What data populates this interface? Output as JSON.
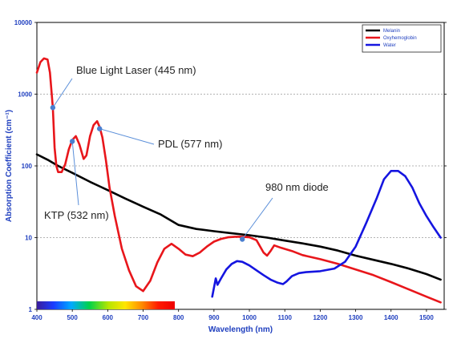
{
  "chart_data": {
    "type": "line",
    "xlabel": "Wavelength (nm)",
    "ylabel": "Absorption Coefficient (cm⁻¹)",
    "xlim": [
      400,
      1550
    ],
    "ylim": [
      1,
      10000
    ],
    "yscale": "log",
    "x_ticks": [
      "400",
      "500",
      "600",
      "700",
      "800",
      "900",
      "1000",
      "1100",
      "1200",
      "1300",
      "1400",
      "1500"
    ],
    "y_ticks": [
      "1",
      "10",
      "100",
      "1000",
      "10000"
    ],
    "grid": "horizontal dashed",
    "legend_position": "top-right",
    "series": [
      {
        "name": "Melanin",
        "color": "#000000",
        "points": [
          [
            400,
            145
          ],
          [
            430,
            122
          ],
          [
            460,
            100
          ],
          [
            500,
            80
          ],
          [
            550,
            60
          ],
          [
            600,
            46
          ],
          [
            650,
            35
          ],
          [
            700,
            27
          ],
          [
            750,
            21
          ],
          [
            800,
            15
          ],
          [
            850,
            13.2
          ],
          [
            900,
            12.3
          ],
          [
            950,
            11.5
          ],
          [
            1000,
            10.8
          ],
          [
            1050,
            10
          ],
          [
            1100,
            9.1
          ],
          [
            1150,
            8.3
          ],
          [
            1200,
            7.5
          ],
          [
            1250,
            6.6
          ],
          [
            1300,
            5.6
          ],
          [
            1350,
            4.9
          ],
          [
            1400,
            4.3
          ],
          [
            1450,
            3.7
          ],
          [
            1500,
            3.1
          ],
          [
            1540,
            2.6
          ]
        ]
      },
      {
        "name": "Oxyhemoglobin",
        "color": "#e8161b",
        "points": [
          [
            400,
            2000
          ],
          [
            410,
            2800
          ],
          [
            420,
            3150
          ],
          [
            430,
            3050
          ],
          [
            437,
            2000
          ],
          [
            445,
            650
          ],
          [
            450,
            180
          ],
          [
            455,
            100
          ],
          [
            460,
            82
          ],
          [
            470,
            82
          ],
          [
            480,
            105
          ],
          [
            490,
            170
          ],
          [
            500,
            230
          ],
          [
            510,
            260
          ],
          [
            520,
            200
          ],
          [
            532,
            125
          ],
          [
            540,
            140
          ],
          [
            550,
            260
          ],
          [
            560,
            370
          ],
          [
            570,
            420
          ],
          [
            577,
            350
          ],
          [
            585,
            250
          ],
          [
            595,
            120
          ],
          [
            605,
            50
          ],
          [
            620,
            20
          ],
          [
            640,
            7
          ],
          [
            660,
            3.5
          ],
          [
            680,
            2.1
          ],
          [
            700,
            1.8
          ],
          [
            720,
            2.5
          ],
          [
            740,
            4.5
          ],
          [
            760,
            7
          ],
          [
            780,
            8.2
          ],
          [
            800,
            7
          ],
          [
            820,
            5.8
          ],
          [
            840,
            5.5
          ],
          [
            860,
            6.2
          ],
          [
            880,
            7.5
          ],
          [
            900,
            8.8
          ],
          [
            920,
            9.6
          ],
          [
            940,
            10.1
          ],
          [
            960,
            10.3
          ],
          [
            980,
            10.3
          ],
          [
            1000,
            10.1
          ],
          [
            1020,
            9.2
          ],
          [
            1040,
            6.2
          ],
          [
            1050,
            5.6
          ],
          [
            1060,
            6.5
          ],
          [
            1070,
            7.8
          ],
          [
            1090,
            7.2
          ],
          [
            1120,
            6.5
          ],
          [
            1150,
            5.7
          ],
          [
            1200,
            5
          ],
          [
            1250,
            4.3
          ],
          [
            1300,
            3.6
          ],
          [
            1350,
            3
          ],
          [
            1400,
            2.4
          ],
          [
            1450,
            1.9
          ],
          [
            1500,
            1.5
          ],
          [
            1540,
            1.25
          ]
        ]
      },
      {
        "name": "Water",
        "color": "#1515e0",
        "points": [
          [
            895,
            1.5
          ],
          [
            905,
            2.7
          ],
          [
            910,
            2.2
          ],
          [
            920,
            2.7
          ],
          [
            935,
            3.6
          ],
          [
            950,
            4.3
          ],
          [
            965,
            4.7
          ],
          [
            980,
            4.6
          ],
          [
            1000,
            4.1
          ],
          [
            1020,
            3.5
          ],
          [
            1040,
            3
          ],
          [
            1060,
            2.6
          ],
          [
            1080,
            2.35
          ],
          [
            1095,
            2.25
          ],
          [
            1105,
            2.45
          ],
          [
            1120,
            2.9
          ],
          [
            1140,
            3.2
          ],
          [
            1160,
            3.3
          ],
          [
            1200,
            3.4
          ],
          [
            1240,
            3.7
          ],
          [
            1270,
            4.6
          ],
          [
            1300,
            7.5
          ],
          [
            1330,
            16
          ],
          [
            1360,
            36
          ],
          [
            1380,
            65
          ],
          [
            1400,
            85
          ],
          [
            1420,
            85
          ],
          [
            1440,
            72
          ],
          [
            1460,
            50
          ],
          [
            1480,
            30
          ],
          [
            1500,
            20
          ],
          [
            1520,
            14
          ],
          [
            1540,
            10
          ]
        ]
      }
    ],
    "annotations": [
      {
        "text": "Blue Light Laser (445 nm)",
        "point": [
          445,
          650
        ]
      },
      {
        "text": "KTP (532 nm)",
        "point": [
          500,
          220
        ]
      },
      {
        "text": "PDL (577 nm)",
        "point": [
          577,
          330
        ]
      },
      {
        "text": "980 nm diode",
        "point": [
          980,
          9.5
        ]
      }
    ],
    "colors": {
      "axis_text": "#1f3fbf",
      "marker": "#4a7fd0",
      "annotation_arrow": "#5b8fd9"
    }
  }
}
